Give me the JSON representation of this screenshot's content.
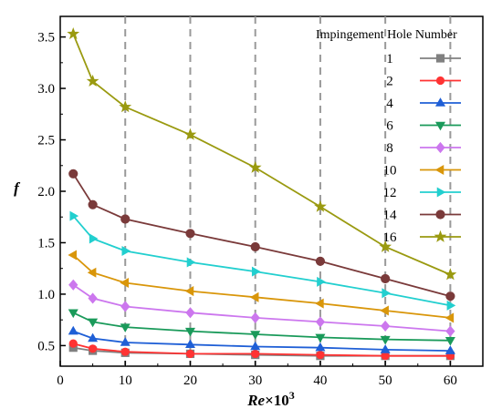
{
  "chart_data": {
    "type": "line",
    "xlabel_main": "Re",
    "xlabel_suffix": "×10",
    "xlabel_sup": "3",
    "ylabel": "f",
    "xlim": [
      0,
      65
    ],
    "ylim": [
      0.3,
      3.7
    ],
    "x_ticks": [
      0,
      10,
      20,
      30,
      40,
      50,
      60
    ],
    "y_ticks": [
      0.5,
      1.0,
      1.5,
      2.0,
      2.5,
      3.0,
      3.5
    ],
    "x_tick_labels": [
      "0",
      "10",
      "20",
      "30",
      "40",
      "50",
      "60"
    ],
    "y_tick_labels": [
      "0.5",
      "1.0",
      "1.5",
      "2.0",
      "2.5",
      "3.0",
      "3.5"
    ],
    "vertical_dashed_lines_at": [
      10,
      20,
      30,
      40,
      50,
      60
    ],
    "legend": {
      "title": "Impingement Hole Number",
      "position": "top-right"
    },
    "x": [
      2,
      5,
      10,
      20,
      30,
      40,
      50,
      60
    ],
    "series": [
      {
        "name": "1",
        "color": "#808080",
        "marker": "square",
        "values": [
          0.48,
          0.45,
          0.43,
          0.42,
          0.41,
          0.4,
          0.4,
          0.4
        ]
      },
      {
        "name": "2",
        "color": "#ff3333",
        "marker": "circle",
        "values": [
          0.52,
          0.47,
          0.44,
          0.42,
          0.42,
          0.41,
          0.4,
          0.4
        ]
      },
      {
        "name": "4",
        "color": "#1f5fd6",
        "marker": "triangle-up",
        "values": [
          0.64,
          0.57,
          0.53,
          0.51,
          0.49,
          0.48,
          0.46,
          0.45
        ]
      },
      {
        "name": "6",
        "color": "#1a9a5a",
        "marker": "triangle-down",
        "values": [
          0.82,
          0.73,
          0.68,
          0.64,
          0.61,
          0.58,
          0.56,
          0.55
        ]
      },
      {
        "name": "8",
        "color": "#cc77ee",
        "marker": "diamond",
        "values": [
          1.09,
          0.96,
          0.88,
          0.82,
          0.77,
          0.73,
          0.69,
          0.64
        ]
      },
      {
        "name": "10",
        "color": "#d9960a",
        "marker": "triangle-left",
        "values": [
          1.38,
          1.21,
          1.11,
          1.03,
          0.97,
          0.91,
          0.84,
          0.77
        ]
      },
      {
        "name": "12",
        "color": "#22cfcf",
        "marker": "triangle-right",
        "values": [
          1.76,
          1.54,
          1.42,
          1.31,
          1.22,
          1.12,
          1.01,
          0.89
        ]
      },
      {
        "name": "14",
        "color": "#7a3a3a",
        "marker": "hexagon",
        "values": [
          2.17,
          1.87,
          1.73,
          1.59,
          1.46,
          1.32,
          1.15,
          0.98
        ]
      },
      {
        "name": "16",
        "color": "#9a9a10",
        "marker": "star",
        "values": [
          3.53,
          3.07,
          2.82,
          2.55,
          2.23,
          1.85,
          1.46,
          1.19
        ]
      }
    ]
  }
}
